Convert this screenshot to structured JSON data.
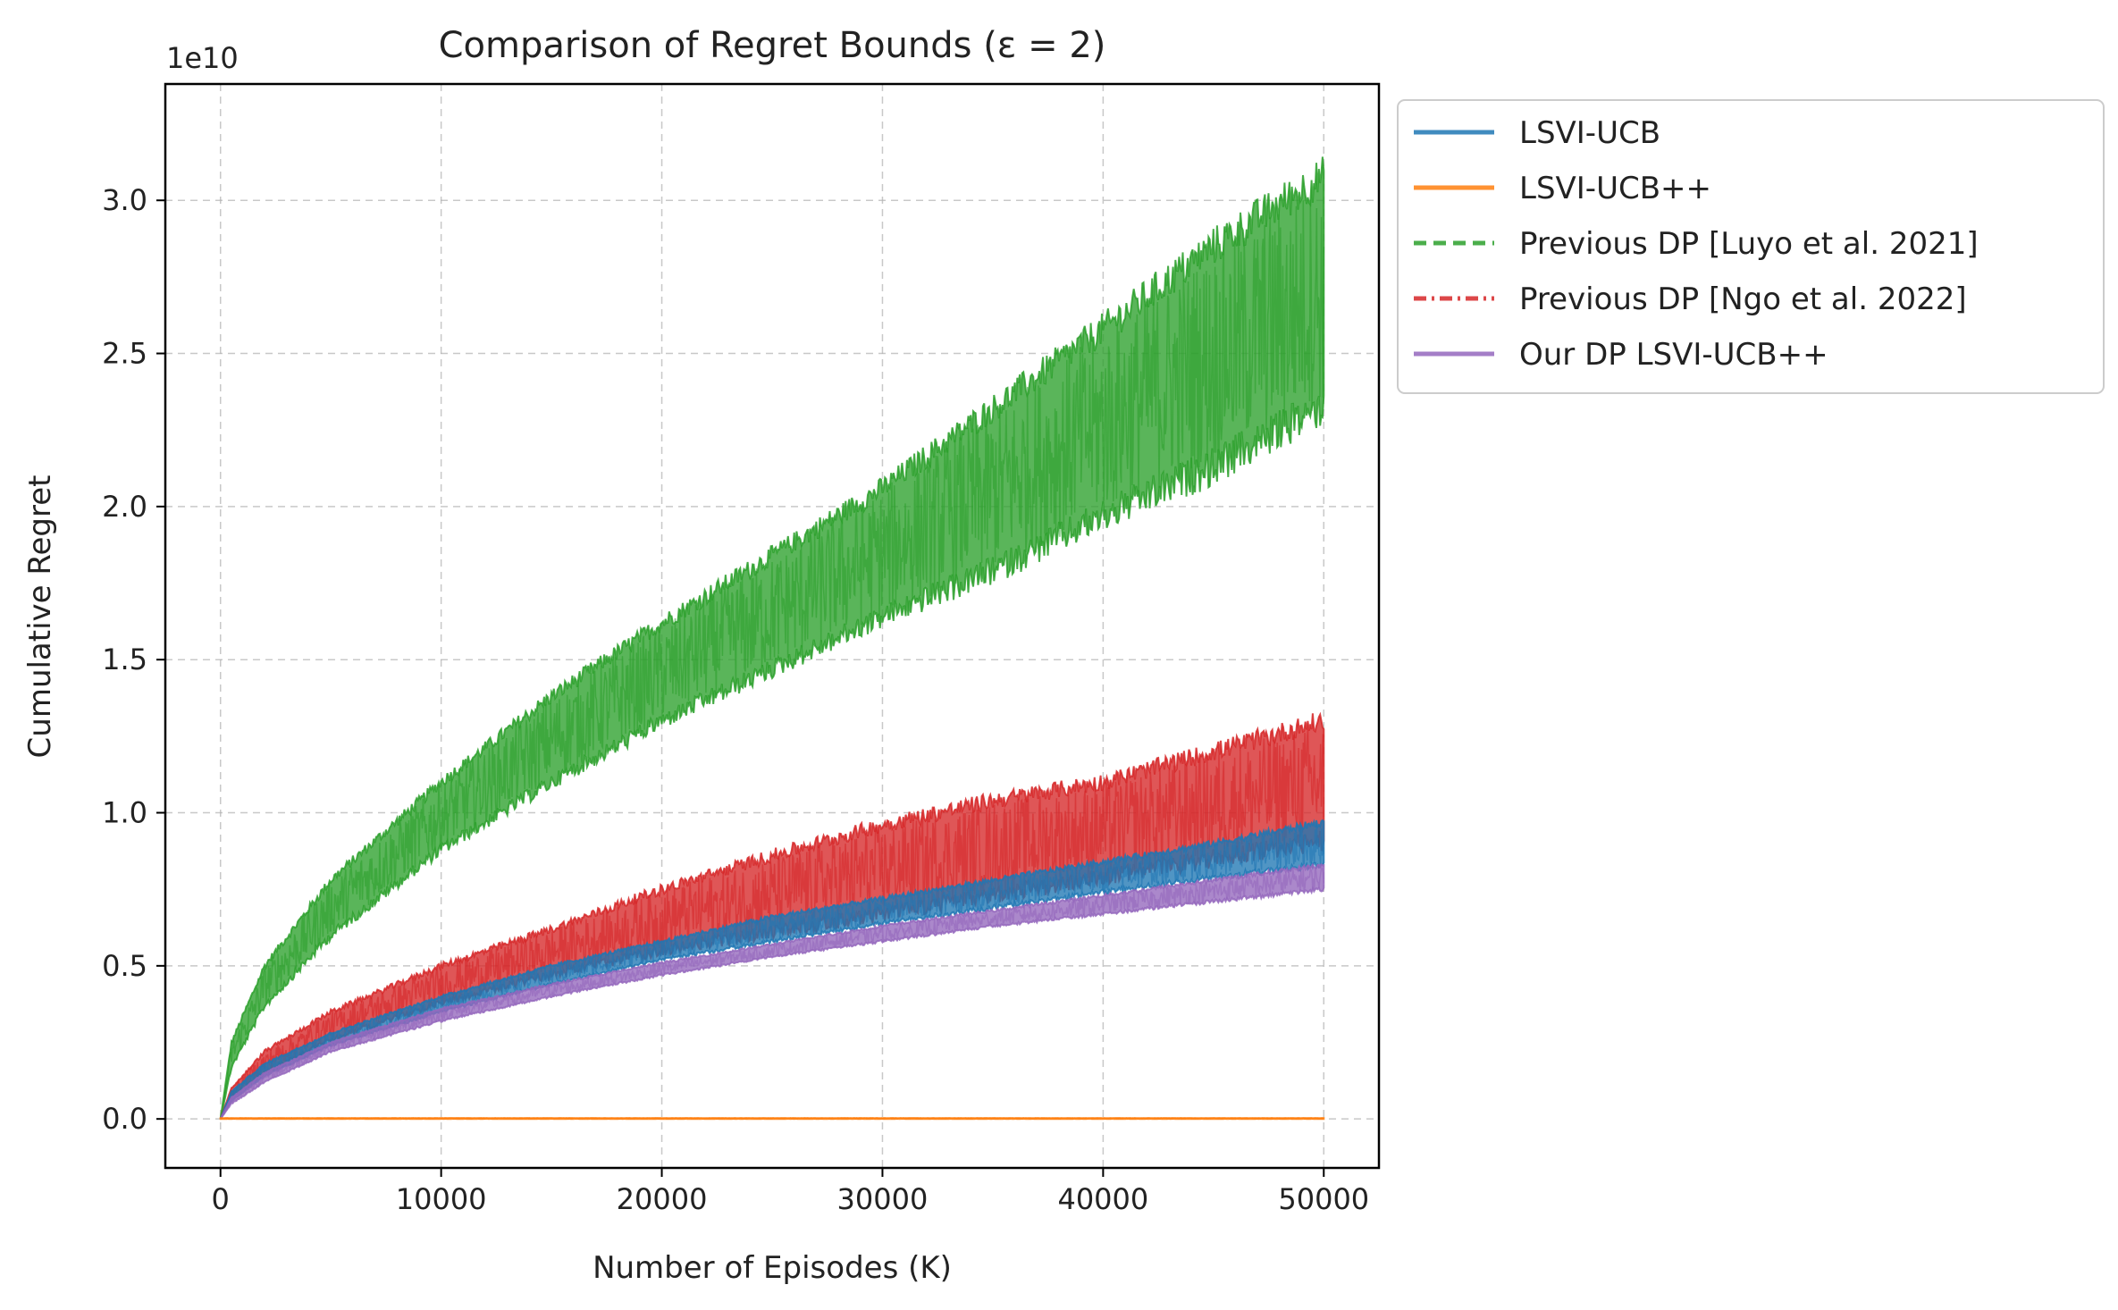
{
  "chart_data": {
    "type": "line",
    "title": "Comparison of Regret Bounds (ε = 2)",
    "xlabel": "Number of Episodes (K)",
    "ylabel": "Cumulative Regret",
    "y_offset_label": "1e10",
    "xlim": [
      -2500,
      52500
    ],
    "ylim": [
      -0.16,
      3.38
    ],
    "x_ticks": [
      0,
      10000,
      20000,
      30000,
      40000,
      50000
    ],
    "x_tick_labels": [
      "0",
      "10000",
      "20000",
      "30000",
      "40000",
      "50000"
    ],
    "y_ticks": [
      0.0,
      0.5,
      1.0,
      1.5,
      2.0,
      2.5,
      3.0
    ],
    "y_tick_labels": [
      "0.0",
      "0.5",
      "1.0",
      "1.5",
      "2.0",
      "2.5",
      "3.0"
    ],
    "grid": true,
    "legend_position": "outside-upper-right",
    "series": [
      {
        "name": "LSVI-UCB",
        "color": "#1f77b4",
        "style": "solid",
        "x": [
          0,
          500,
          2000,
          5000,
          10000,
          15000,
          20000,
          25000,
          30000,
          35000,
          40000,
          45000,
          50000
        ],
        "low": [
          0,
          0.06,
          0.14,
          0.24,
          0.35,
          0.44,
          0.52,
          0.58,
          0.64,
          0.69,
          0.74,
          0.79,
          0.83
        ],
        "high": [
          0,
          0.09,
          0.18,
          0.28,
          0.4,
          0.5,
          0.58,
          0.66,
          0.72,
          0.78,
          0.84,
          0.9,
          0.97
        ]
      },
      {
        "name": "LSVI-UCB++",
        "color": "#ff7f0e",
        "style": "solid",
        "x": [
          0,
          50000
        ],
        "low": [
          0.0,
          0.0
        ],
        "high": [
          0.003,
          0.003
        ]
      },
      {
        "name": "Previous DP [Luyo et al. 2021]",
        "color": "#2ca02c",
        "style": "dashed",
        "x": [
          0,
          500,
          2000,
          5000,
          10000,
          15000,
          20000,
          25000,
          30000,
          35000,
          40000,
          45000,
          50000
        ],
        "low": [
          0,
          0.17,
          0.37,
          0.6,
          0.88,
          1.1,
          1.3,
          1.47,
          1.64,
          1.79,
          1.97,
          2.13,
          2.33
        ],
        "high": [
          0,
          0.25,
          0.5,
          0.78,
          1.1,
          1.38,
          1.62,
          1.84,
          2.06,
          2.32,
          2.58,
          2.85,
          3.08
        ]
      },
      {
        "name": "Previous DP [Ngo et al. 2022]",
        "color": "#d62728",
        "style": "dashdot",
        "x": [
          0,
          500,
          2000,
          5000,
          10000,
          15000,
          20000,
          25000,
          30000,
          35000,
          40000,
          45000,
          50000
        ],
        "low": [
          0,
          0.07,
          0.15,
          0.26,
          0.38,
          0.47,
          0.55,
          0.61,
          0.67,
          0.73,
          0.79,
          0.85,
          0.91
        ],
        "high": [
          0,
          0.1,
          0.22,
          0.35,
          0.5,
          0.62,
          0.75,
          0.86,
          0.96,
          1.04,
          1.1,
          1.2,
          1.3
        ]
      },
      {
        "name": "Our DP LSVI-UCB++",
        "color": "#9467bd",
        "style": "solid",
        "x": [
          0,
          500,
          2000,
          5000,
          10000,
          15000,
          20000,
          25000,
          30000,
          35000,
          40000,
          45000,
          50000
        ],
        "low": [
          0,
          0.05,
          0.12,
          0.22,
          0.32,
          0.4,
          0.47,
          0.53,
          0.58,
          0.63,
          0.67,
          0.71,
          0.75
        ],
        "high": [
          0,
          0.07,
          0.15,
          0.25,
          0.36,
          0.44,
          0.51,
          0.57,
          0.63,
          0.68,
          0.73,
          0.78,
          0.83
        ]
      }
    ]
  }
}
